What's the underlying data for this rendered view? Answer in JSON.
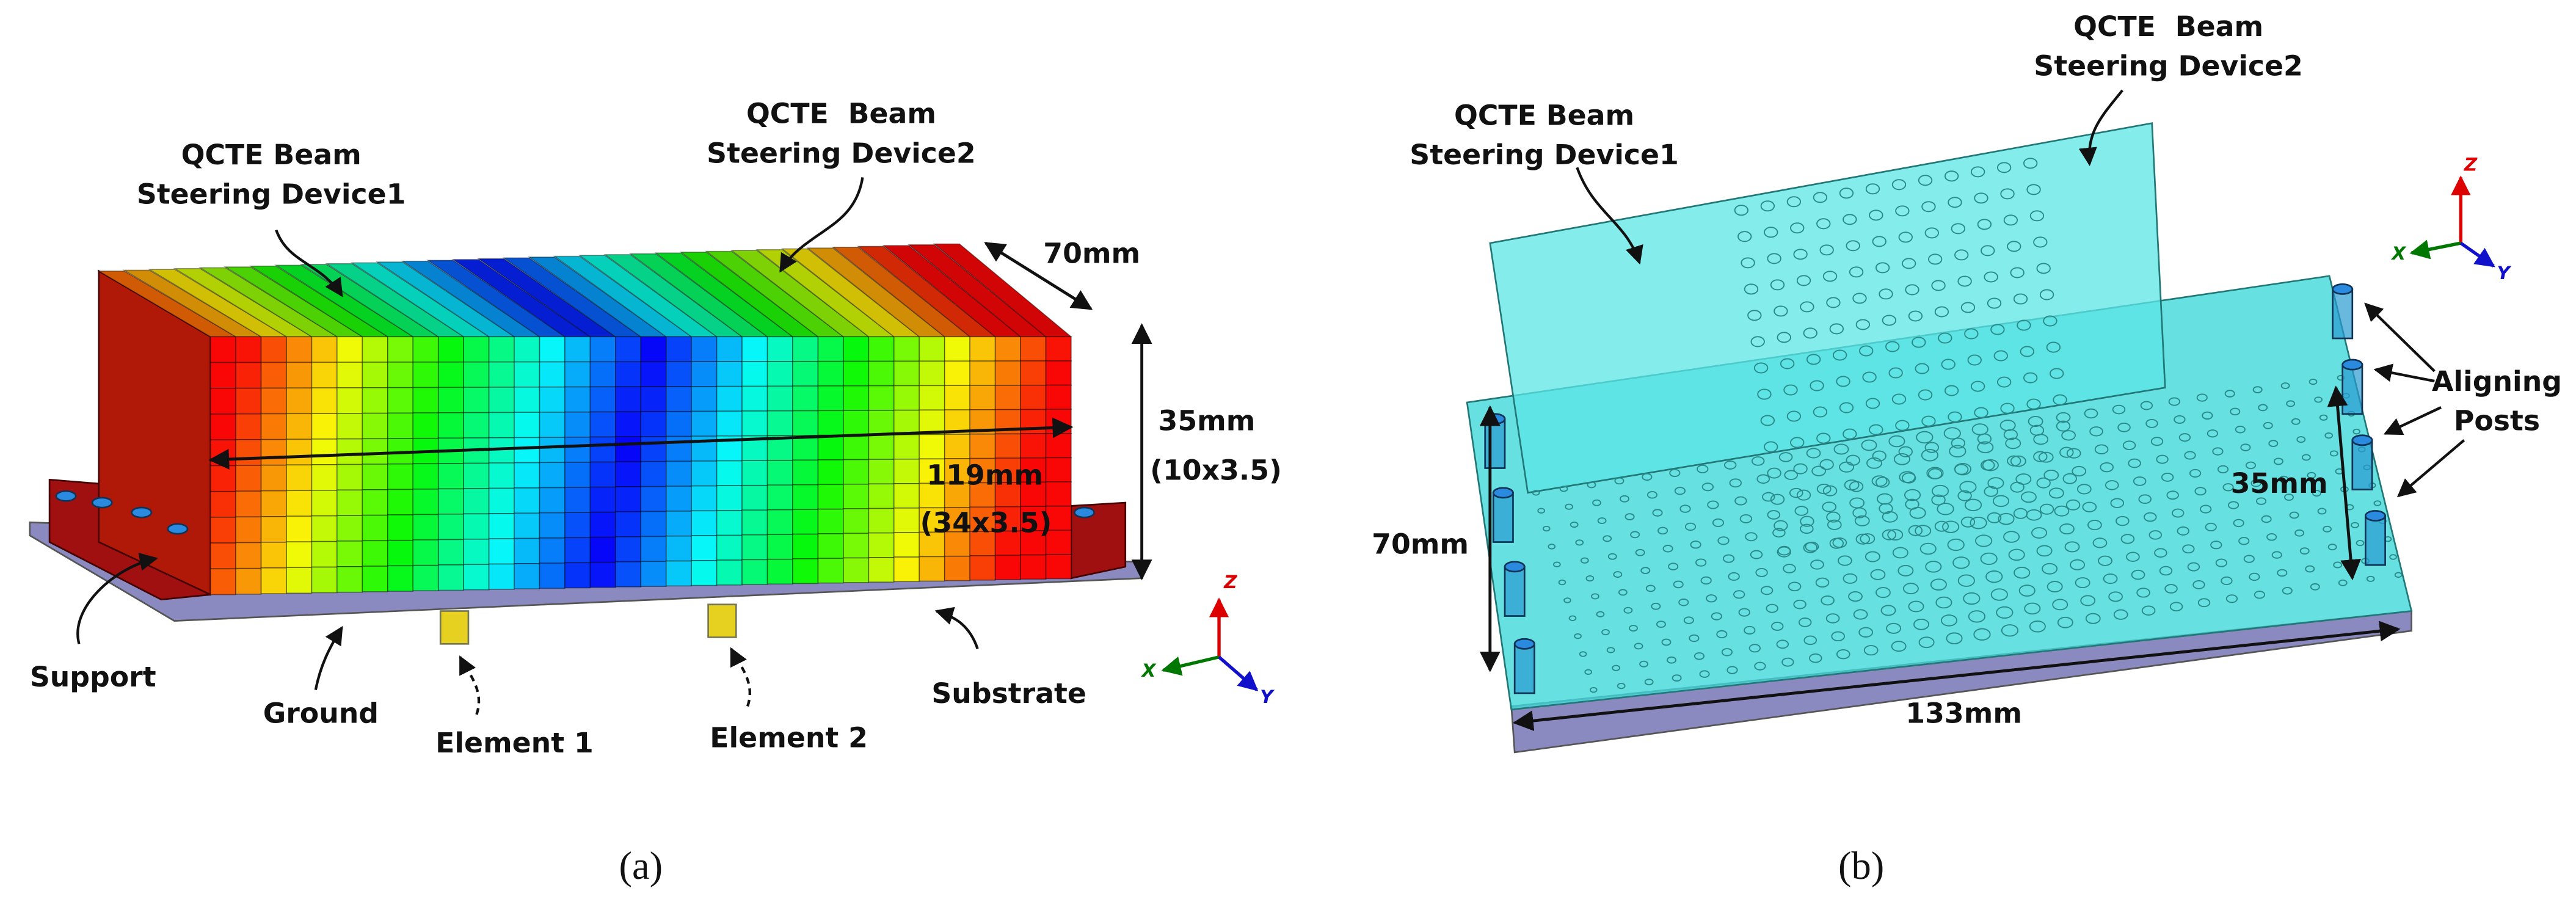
{
  "panel_a": {
    "caption": "(a)",
    "device1": [
      "QCTE Beam",
      "Steering Device1"
    ],
    "device2": [
      "QCTE  Beam",
      "Steering Device2"
    ],
    "depth": "70mm",
    "height": [
      "35mm",
      "(10x3.5)"
    ],
    "length": [
      "119mm",
      "(34x3.5)"
    ],
    "support": "Support",
    "ground": "Ground",
    "element1": "Element 1",
    "element2": "Element 2",
    "substrate": "Substrate",
    "axes": {
      "z": "Z",
      "x": "X",
      "y": "Y"
    }
  },
  "panel_b": {
    "caption": "(b)",
    "device1": [
      "QCTE Beam",
      "Steering Device1"
    ],
    "device2": [
      "QCTE  Beam",
      "Steering Device2"
    ],
    "posts": [
      "Aligning",
      "Posts"
    ],
    "height": "35mm",
    "depth": "70mm",
    "length": "133mm",
    "axes": {
      "z": "Z",
      "x": "X",
      "y": "Y"
    }
  }
}
